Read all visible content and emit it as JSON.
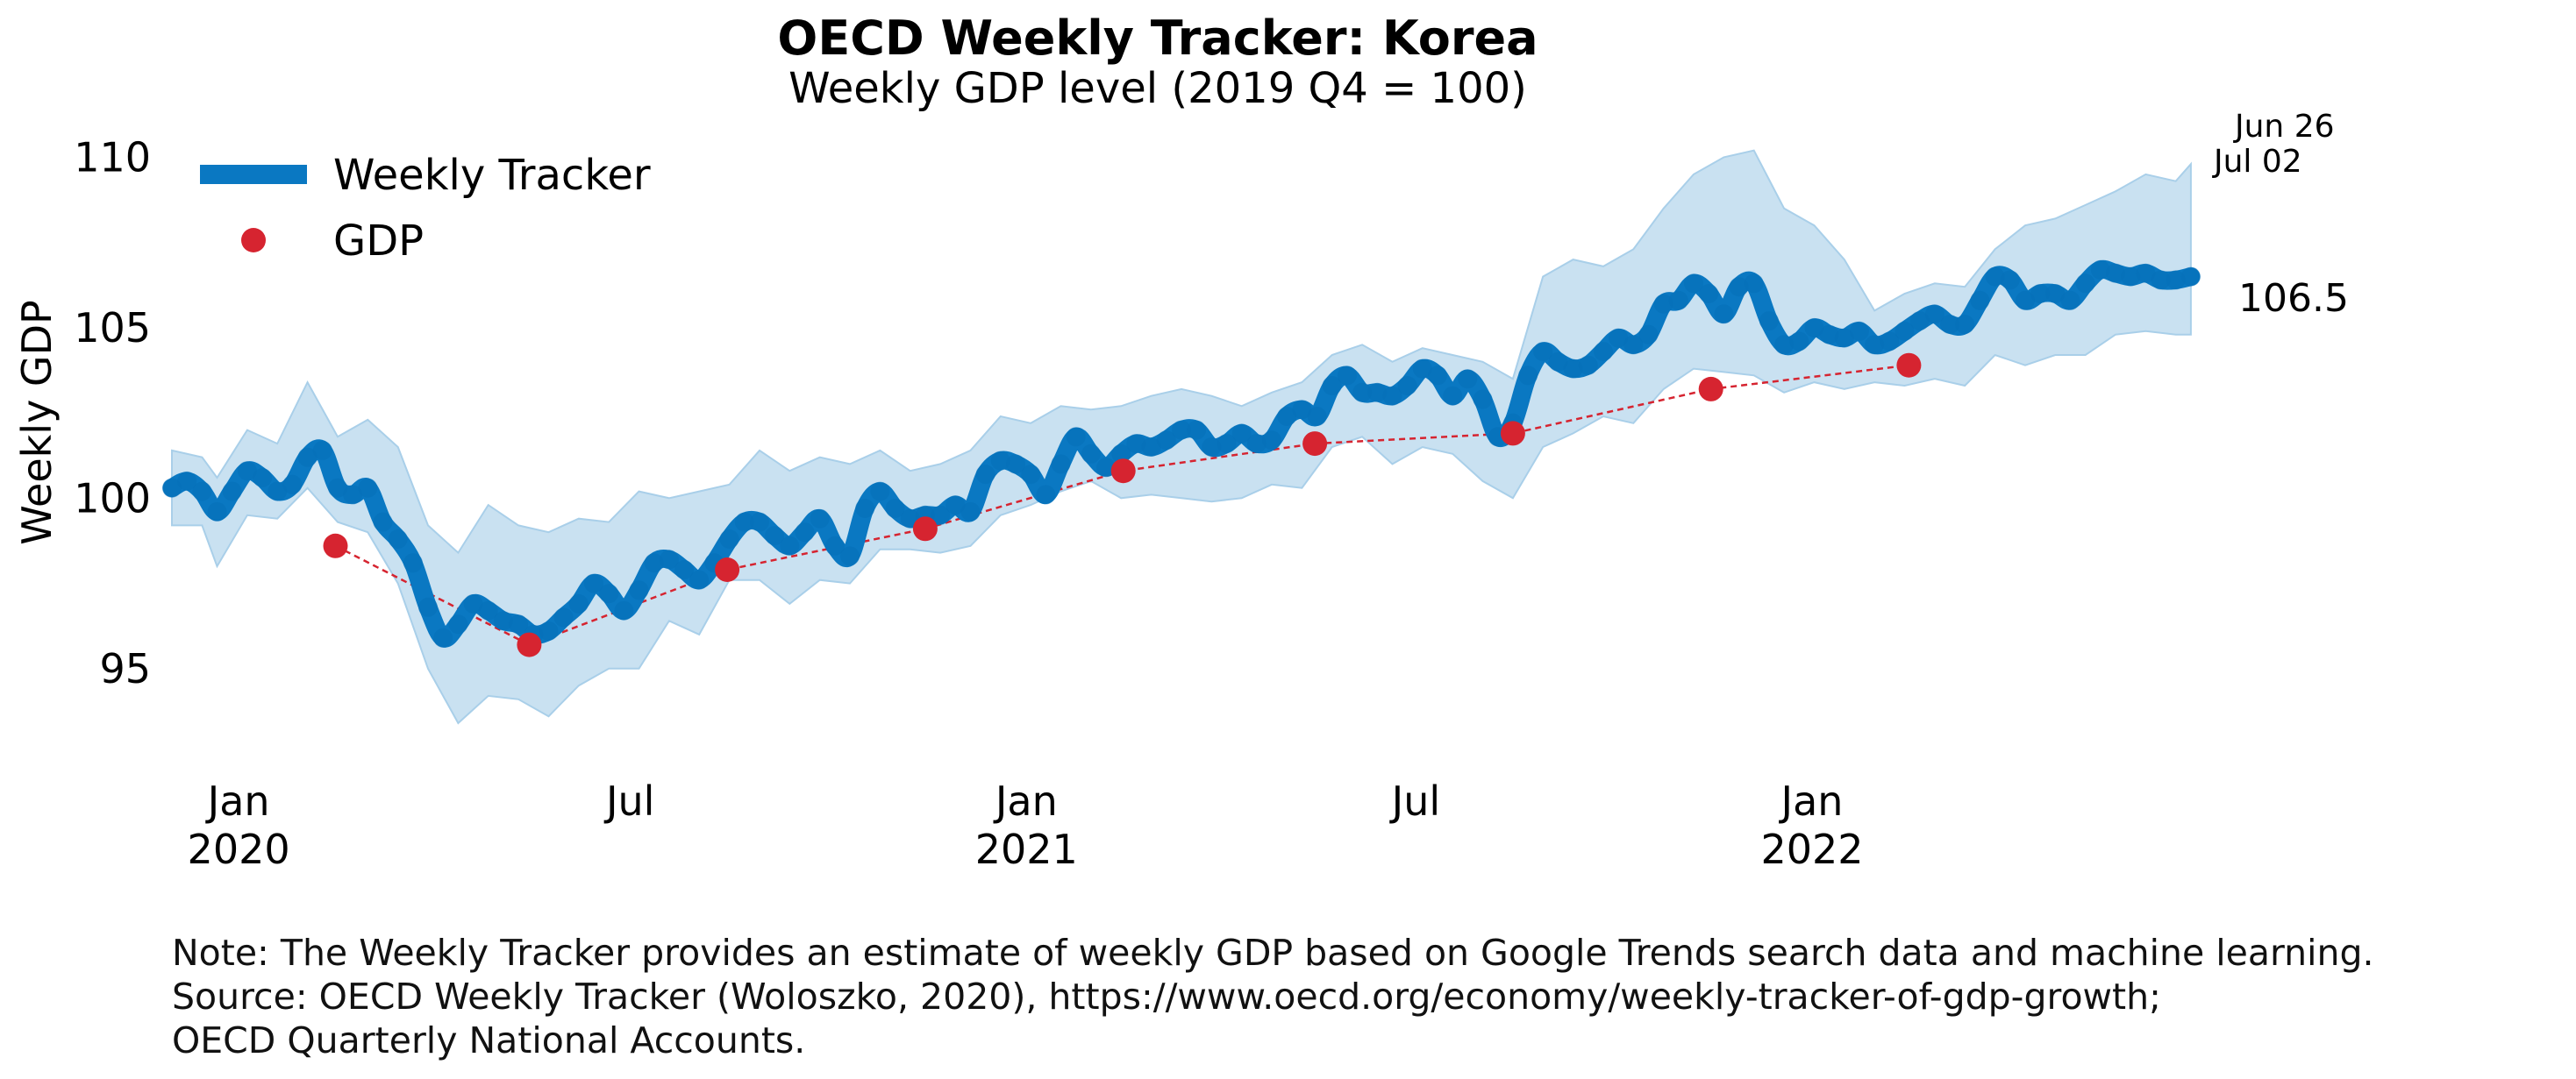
{
  "colors": {
    "tracker": "#0a78c2",
    "band": "#c9e1f1",
    "band_edge": "#a9cfe9",
    "gdp": "#d62430"
  },
  "chart_data": {
    "type": "line",
    "title": "OECD Weekly Tracker: Korea",
    "subtitle": "Weekly GDP level (2019 Q4 = 100)",
    "ylabel": "Weekly GDP",
    "ylim": [
      92.5,
      110.5
    ],
    "yticks": [
      "110",
      "105",
      "100",
      "95"
    ],
    "x_range": [
      "2019-12-01",
      "2022-07-05"
    ],
    "xticks": [
      {
        "date": "2020-01-01",
        "line1": "Jan",
        "line2": "2020"
      },
      {
        "date": "2020-07-01",
        "line1": "Jul",
        "line2": ""
      },
      {
        "date": "2021-01-01",
        "line1": "Jan",
        "line2": "2021"
      },
      {
        "date": "2021-07-01",
        "line1": "Jul",
        "line2": ""
      },
      {
        "date": "2022-01-01",
        "line1": "Jan",
        "line2": "2022"
      }
    ],
    "legend": {
      "placement": "top-left",
      "tracker_label": "Weekly Tracker",
      "gdp_label": "GDP"
    },
    "series": [
      {
        "name": "Weekly Tracker",
        "kind": "line",
        "points": [
          [
            "2019-12-01",
            100.3
          ],
          [
            "2019-12-08",
            100.5
          ],
          [
            "2019-12-15",
            100.2
          ],
          [
            "2019-12-22",
            99.6
          ],
          [
            "2019-12-29",
            100.2
          ],
          [
            "2020-01-05",
            100.8
          ],
          [
            "2020-01-12",
            100.6
          ],
          [
            "2020-01-19",
            100.2
          ],
          [
            "2020-01-26",
            100.4
          ],
          [
            "2020-02-02",
            101.2
          ],
          [
            "2020-02-09",
            101.4
          ],
          [
            "2020-02-16",
            100.3
          ],
          [
            "2020-02-23",
            100.1
          ],
          [
            "2020-03-01",
            100.3
          ],
          [
            "2020-03-08",
            99.3
          ],
          [
            "2020-03-15",
            98.8
          ],
          [
            "2020-03-22",
            98.1
          ],
          [
            "2020-03-29",
            96.8
          ],
          [
            "2020-04-05",
            95.9
          ],
          [
            "2020-04-12",
            96.3
          ],
          [
            "2020-04-19",
            96.9
          ],
          [
            "2020-04-26",
            96.7
          ],
          [
            "2020-05-03",
            96.4
          ],
          [
            "2020-05-10",
            96.3
          ],
          [
            "2020-05-17",
            96.0
          ],
          [
            "2020-05-24",
            96.1
          ],
          [
            "2020-05-31",
            96.5
          ],
          [
            "2020-06-07",
            96.9
          ],
          [
            "2020-06-14",
            97.5
          ],
          [
            "2020-06-21",
            97.2
          ],
          [
            "2020-06-28",
            96.7
          ],
          [
            "2020-07-05",
            97.3
          ],
          [
            "2020-07-12",
            98.1
          ],
          [
            "2020-07-19",
            98.2
          ],
          [
            "2020-07-26",
            97.9
          ],
          [
            "2020-08-02",
            97.6
          ],
          [
            "2020-08-09",
            98.1
          ],
          [
            "2020-08-16",
            98.8
          ],
          [
            "2020-08-23",
            99.3
          ],
          [
            "2020-08-30",
            99.3
          ],
          [
            "2020-09-06",
            98.9
          ],
          [
            "2020-09-13",
            98.6
          ],
          [
            "2020-09-20",
            99.0
          ],
          [
            "2020-09-27",
            99.4
          ],
          [
            "2020-10-04",
            98.6
          ],
          [
            "2020-10-11",
            98.3
          ],
          [
            "2020-10-18",
            99.7
          ],
          [
            "2020-10-25",
            100.2
          ],
          [
            "2020-11-01",
            99.7
          ],
          [
            "2020-11-08",
            99.4
          ],
          [
            "2020-11-15",
            99.5
          ],
          [
            "2020-11-22",
            99.5
          ],
          [
            "2020-11-29",
            99.8
          ],
          [
            "2020-12-06",
            99.6
          ],
          [
            "2020-12-13",
            100.7
          ],
          [
            "2020-12-20",
            101.1
          ],
          [
            "2020-12-27",
            101.0
          ],
          [
            "2021-01-03",
            100.7
          ],
          [
            "2021-01-10",
            100.1
          ],
          [
            "2021-01-17",
            101.0
          ],
          [
            "2021-01-24",
            101.8
          ],
          [
            "2021-01-31",
            101.3
          ],
          [
            "2021-02-07",
            100.9
          ],
          [
            "2021-02-14",
            101.3
          ],
          [
            "2021-02-21",
            101.6
          ],
          [
            "2021-02-28",
            101.5
          ],
          [
            "2021-03-07",
            101.7
          ],
          [
            "2021-03-14",
            102.0
          ],
          [
            "2021-03-21",
            102.0
          ],
          [
            "2021-03-28",
            101.5
          ],
          [
            "2021-04-04",
            101.6
          ],
          [
            "2021-04-11",
            101.9
          ],
          [
            "2021-04-18",
            101.6
          ],
          [
            "2021-04-25",
            101.7
          ],
          [
            "2021-05-02",
            102.4
          ],
          [
            "2021-05-09",
            102.6
          ],
          [
            "2021-05-16",
            102.4
          ],
          [
            "2021-05-23",
            103.3
          ],
          [
            "2021-05-30",
            103.6
          ],
          [
            "2021-06-06",
            103.1
          ],
          [
            "2021-06-13",
            103.1
          ],
          [
            "2021-06-20",
            103.0
          ],
          [
            "2021-06-27",
            103.3
          ],
          [
            "2021-07-04",
            103.8
          ],
          [
            "2021-07-11",
            103.6
          ],
          [
            "2021-07-18",
            103.0
          ],
          [
            "2021-07-25",
            103.5
          ],
          [
            "2021-08-01",
            102.9
          ],
          [
            "2021-08-08",
            101.8
          ],
          [
            "2021-08-15",
            102.2
          ],
          [
            "2021-08-22",
            103.6
          ],
          [
            "2021-08-29",
            104.3
          ],
          [
            "2021-09-05",
            104.0
          ],
          [
            "2021-09-12",
            103.8
          ],
          [
            "2021-09-19",
            103.9
          ],
          [
            "2021-09-26",
            104.3
          ],
          [
            "2021-10-03",
            104.7
          ],
          [
            "2021-10-10",
            104.5
          ],
          [
            "2021-10-17",
            104.8
          ],
          [
            "2021-10-24",
            105.7
          ],
          [
            "2021-10-31",
            105.8
          ],
          [
            "2021-11-07",
            106.3
          ],
          [
            "2021-11-14",
            106.0
          ],
          [
            "2021-11-21",
            105.4
          ],
          [
            "2021-11-28",
            106.2
          ],
          [
            "2021-12-05",
            106.3
          ],
          [
            "2021-12-12",
            105.2
          ],
          [
            "2021-12-19",
            104.5
          ],
          [
            "2021-12-26",
            104.6
          ],
          [
            "2022-01-02",
            105.0
          ],
          [
            "2022-01-09",
            104.8
          ],
          [
            "2022-01-16",
            104.7
          ],
          [
            "2022-01-23",
            104.9
          ],
          [
            "2022-01-30",
            104.5
          ],
          [
            "2022-02-06",
            104.6
          ],
          [
            "2022-02-13",
            104.9
          ],
          [
            "2022-02-20",
            105.2
          ],
          [
            "2022-02-27",
            105.4
          ],
          [
            "2022-03-06",
            105.1
          ],
          [
            "2022-03-13",
            105.1
          ],
          [
            "2022-03-20",
            105.8
          ],
          [
            "2022-03-27",
            106.5
          ],
          [
            "2022-04-03",
            106.4
          ],
          [
            "2022-04-10",
            105.8
          ],
          [
            "2022-04-17",
            106.0
          ],
          [
            "2022-04-24",
            106.0
          ],
          [
            "2022-05-01",
            105.8
          ],
          [
            "2022-05-08",
            106.3
          ],
          [
            "2022-05-15",
            106.7
          ],
          [
            "2022-05-22",
            106.6
          ],
          [
            "2022-05-29",
            106.5
          ],
          [
            "2022-06-05",
            106.6
          ],
          [
            "2022-06-12",
            106.4
          ],
          [
            "2022-06-19",
            106.4
          ],
          [
            "2022-06-26",
            106.5
          ]
        ]
      },
      {
        "name": "band",
        "kind": "band",
        "points": [
          [
            "2019-12-01",
            101.4,
            99.2
          ],
          [
            "2019-12-15",
            101.2,
            99.2
          ],
          [
            "2019-12-22",
            100.6,
            98.0
          ],
          [
            "2020-01-05",
            102.0,
            99.5
          ],
          [
            "2020-01-19",
            101.6,
            99.4
          ],
          [
            "2020-02-02",
            103.4,
            100.3
          ],
          [
            "2020-02-16",
            101.8,
            99.3
          ],
          [
            "2020-03-01",
            102.3,
            99.0
          ],
          [
            "2020-03-15",
            101.5,
            97.5
          ],
          [
            "2020-03-29",
            99.2,
            95.0
          ],
          [
            "2020-04-12",
            98.4,
            93.4
          ],
          [
            "2020-04-26",
            99.8,
            94.2
          ],
          [
            "2020-05-10",
            99.2,
            94.1
          ],
          [
            "2020-05-24",
            99.0,
            93.6
          ],
          [
            "2020-06-07",
            99.4,
            94.5
          ],
          [
            "2020-06-21",
            99.3,
            95.0
          ],
          [
            "2020-07-05",
            100.2,
            95.0
          ],
          [
            "2020-07-19",
            100.0,
            96.4
          ],
          [
            "2020-08-02",
            100.2,
            96.0
          ],
          [
            "2020-08-16",
            100.4,
            97.6
          ],
          [
            "2020-08-30",
            101.4,
            97.6
          ],
          [
            "2020-09-13",
            100.8,
            96.9
          ],
          [
            "2020-09-27",
            101.2,
            97.6
          ],
          [
            "2020-10-11",
            101.0,
            97.5
          ],
          [
            "2020-10-25",
            101.4,
            98.5
          ],
          [
            "2020-11-08",
            100.8,
            98.5
          ],
          [
            "2020-11-22",
            101.0,
            98.4
          ],
          [
            "2020-12-06",
            101.4,
            98.6
          ],
          [
            "2020-12-20",
            102.4,
            99.5
          ],
          [
            "2021-01-03",
            102.2,
            99.8
          ],
          [
            "2021-01-17",
            102.7,
            100.2
          ],
          [
            "2021-01-31",
            102.6,
            100.5
          ],
          [
            "2021-02-14",
            102.7,
            100.0
          ],
          [
            "2021-02-28",
            103.0,
            100.1
          ],
          [
            "2021-03-14",
            103.2,
            100.0
          ],
          [
            "2021-03-28",
            103.0,
            99.9
          ],
          [
            "2021-04-11",
            102.7,
            100.0
          ],
          [
            "2021-04-25",
            103.1,
            100.4
          ],
          [
            "2021-05-09",
            103.4,
            100.3
          ],
          [
            "2021-05-23",
            104.2,
            101.5
          ],
          [
            "2021-06-06",
            104.5,
            101.8
          ],
          [
            "2021-06-20",
            104.0,
            101.0
          ],
          [
            "2021-07-04",
            104.4,
            101.5
          ],
          [
            "2021-07-18",
            104.2,
            101.3
          ],
          [
            "2021-08-01",
            104.0,
            100.5
          ],
          [
            "2021-08-15",
            103.5,
            100.0
          ],
          [
            "2021-08-29",
            106.5,
            101.5
          ],
          [
            "2021-09-12",
            107.0,
            101.9
          ],
          [
            "2021-09-26",
            106.8,
            102.4
          ],
          [
            "2021-10-10",
            107.3,
            102.2
          ],
          [
            "2021-10-24",
            108.5,
            103.2
          ],
          [
            "2021-11-07",
            109.5,
            103.8
          ],
          [
            "2021-11-21",
            110.0,
            103.7
          ],
          [
            "2021-12-05",
            110.2,
            103.6
          ],
          [
            "2021-12-19",
            108.5,
            103.1
          ],
          [
            "2022-01-02",
            108.0,
            103.4
          ],
          [
            "2022-01-16",
            107.0,
            103.2
          ],
          [
            "2022-01-30",
            105.5,
            103.4
          ],
          [
            "2022-02-13",
            106.0,
            103.3
          ],
          [
            "2022-02-27",
            106.3,
            103.5
          ],
          [
            "2022-03-13",
            106.2,
            103.3
          ],
          [
            "2022-03-27",
            107.3,
            104.2
          ],
          [
            "2022-04-10",
            108.0,
            103.9
          ],
          [
            "2022-04-24",
            108.2,
            104.2
          ],
          [
            "2022-05-08",
            108.6,
            104.2
          ],
          [
            "2022-05-22",
            109.0,
            104.8
          ],
          [
            "2022-06-05",
            109.5,
            104.9
          ],
          [
            "2022-06-19",
            109.3,
            104.8
          ],
          [
            "2022-06-26",
            109.8,
            104.8
          ]
        ]
      },
      {
        "name": "GDP",
        "kind": "points",
        "points": [
          [
            "2020-02-15",
            98.6
          ],
          [
            "2020-05-15",
            95.7
          ],
          [
            "2020-08-15",
            97.9
          ],
          [
            "2020-11-15",
            99.1
          ],
          [
            "2021-02-15",
            100.8
          ],
          [
            "2021-05-15",
            101.6
          ],
          [
            "2021-08-15",
            101.9
          ],
          [
            "2021-11-15",
            103.2
          ],
          [
            "2022-02-15",
            103.9
          ]
        ]
      }
    ],
    "last_value_label": "106.5",
    "date_labels": [
      "Jun 26",
      "Jul 02"
    ]
  },
  "note": {
    "line1": "Note: The Weekly Tracker provides an estimate of weekly GDP based on Google Trends search data and machine learning.",
    "line2": "Source: OECD Weekly Tracker (Woloszko, 2020), https://www.oecd.org/economy/weekly-tracker-of-gdp-growth;",
    "line3": "OECD Quarterly National Accounts."
  }
}
